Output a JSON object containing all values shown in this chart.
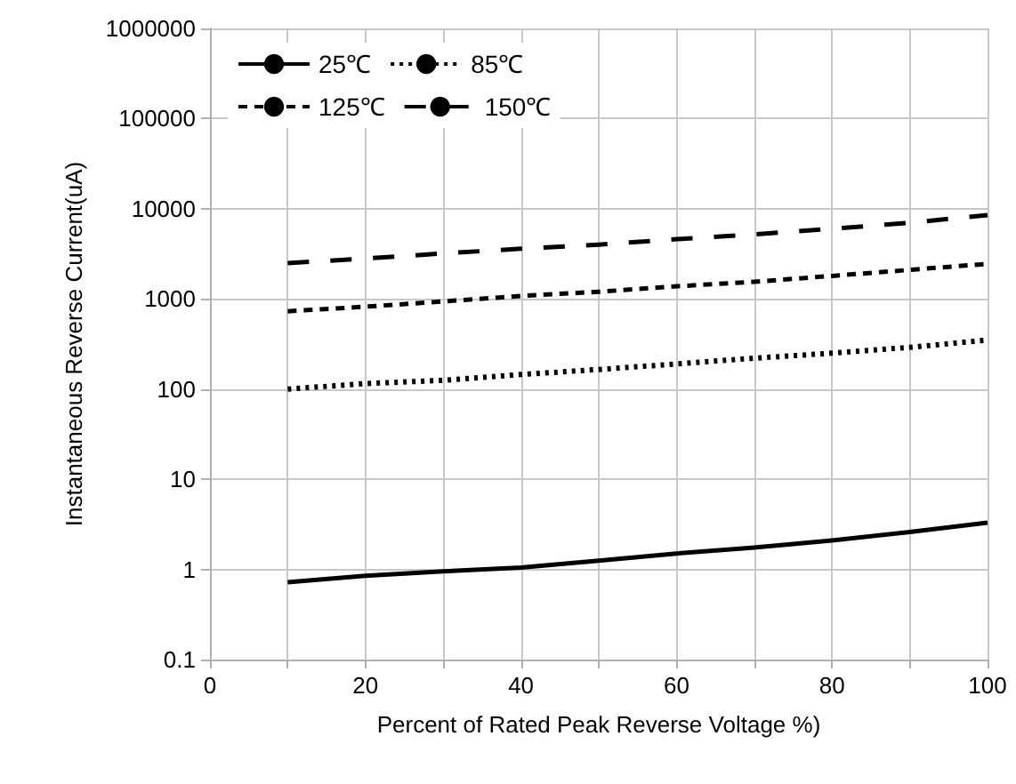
{
  "chart_data": {
    "type": "line",
    "xlabel": "Percent of Rated Peak Reverse Voltage %)",
    "ylabel": "Instantaneous Reverse Current(uA)",
    "x": [
      10,
      20,
      30,
      40,
      50,
      60,
      70,
      80,
      90,
      100
    ],
    "series": [
      {
        "name": "25℃",
        "color": "#000000",
        "line_style": "solid",
        "values": [
          0.72,
          0.85,
          0.95,
          1.05,
          1.25,
          1.5,
          1.75,
          2.1,
          2.6,
          3.3
        ]
      },
      {
        "name": "85℃",
        "color": "#000000",
        "line_style": "dotted",
        "values": [
          100,
          115,
          125,
          145,
          165,
          190,
          220,
          250,
          290,
          350
        ]
      },
      {
        "name": "125℃",
        "color": "#000000",
        "line_style": "dashed",
        "values": [
          730,
          820,
          940,
          1080,
          1200,
          1380,
          1550,
          1800,
          2100,
          2450
        ]
      },
      {
        "name": "150℃",
        "color": "#000000",
        "line_style": "dashed",
        "values": [
          2500,
          2800,
          3200,
          3600,
          4000,
          4600,
          5200,
          6000,
          7000,
          8500
        ]
      }
    ],
    "log": "y",
    "xlim": [
      0,
      100
    ],
    "xticks": [
      0,
      {
        "value": 10,
        "label": null
      },
      20,
      {
        "value": 30,
        "label": null
      },
      40,
      {
        "value": 50,
        "label": null
      },
      60,
      {
        "value": 70,
        "label": null
      },
      80,
      {
        "value": 90,
        "label": null
      },
      100
    ],
    "ylim": [
      0.1,
      1000000
    ],
    "yticks": [
      0.1,
      1,
      10,
      100,
      1000,
      10000,
      100000,
      1000000
    ],
    "grid": true,
    "legend": "top left",
    "marker": "none"
  }
}
